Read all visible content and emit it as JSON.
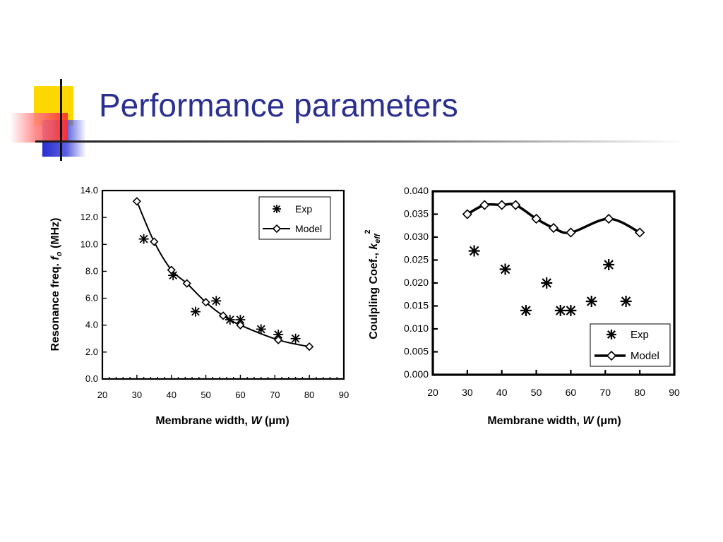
{
  "slide": {
    "title": "Performance parameters"
  },
  "colors": {
    "title": "#2b2f8f",
    "deco_yellow": "#ffd700",
    "deco_blue": "#2a2fd0",
    "deco_red": "#ff3b3b"
  },
  "chart_data": [
    {
      "type": "line",
      "title": "",
      "xlabel": "Membrane width, W (μm)",
      "ylabel": "Resonance freq. fo (MHz)",
      "xlim": [
        20,
        90
      ],
      "ylim": [
        0,
        14
      ],
      "x_ticks": [
        20,
        30,
        40,
        50,
        60,
        70,
        80,
        90
      ],
      "y_ticks": [
        0,
        2,
        4,
        6,
        8,
        10,
        12,
        14
      ],
      "x_tick_labels": [
        "20",
        "30",
        "40",
        "50",
        "60",
        "70",
        "80",
        "90"
      ],
      "y_tick_labels": [
        "0.0",
        "2.0",
        "4.0",
        "6.0",
        "8.0",
        "10.0",
        "12.0",
        "14.0"
      ],
      "legend_position": "top-right",
      "grid": false,
      "series": [
        {
          "name": "Exp",
          "marker": "asterisk",
          "points": [
            [
              32,
              10.4
            ],
            [
              40.5,
              7.7
            ],
            [
              47,
              5.0
            ],
            [
              53,
              5.8
            ],
            [
              57,
              4.4
            ],
            [
              60,
              4.4
            ],
            [
              66,
              3.7
            ],
            [
              71,
              3.3
            ],
            [
              76,
              3.0
            ]
          ]
        },
        {
          "name": "Model",
          "marker": "diamond",
          "line": true,
          "points": [
            [
              30,
              13.2
            ],
            [
              35,
              10.2
            ],
            [
              40,
              8.1
            ],
            [
              44.5,
              7.1
            ],
            [
              50,
              5.7
            ],
            [
              55,
              4.7
            ],
            [
              60,
              4.0
            ],
            [
              71,
              2.9
            ],
            [
              80,
              2.4
            ]
          ]
        }
      ]
    },
    {
      "type": "line",
      "title": "",
      "xlabel": "Membrane width, W (μm)",
      "ylabel": "Coulpling Coef., keff2",
      "xlim": [
        20,
        90
      ],
      "ylim": [
        0,
        0.04
      ],
      "x_ticks": [
        20,
        30,
        40,
        50,
        60,
        70,
        80,
        90
      ],
      "y_ticks": [
        0,
        0.005,
        0.01,
        0.015,
        0.02,
        0.025,
        0.03,
        0.035,
        0.04
      ],
      "x_tick_labels": [
        "20",
        "30",
        "40",
        "50",
        "60",
        "70",
        "80",
        "90"
      ],
      "y_tick_labels": [
        "0.000",
        "0.005",
        "0.010",
        "0.015",
        "0.020",
        "0.025",
        "0.030",
        "0.035",
        "0.040"
      ],
      "legend_position": "bottom-right",
      "grid": false,
      "series": [
        {
          "name": "Exp",
          "marker": "asterisk",
          "points": [
            [
              32,
              0.027
            ],
            [
              41,
              0.023
            ],
            [
              47,
              0.014
            ],
            [
              53,
              0.02
            ],
            [
              57,
              0.014
            ],
            [
              60,
              0.014
            ],
            [
              66,
              0.016
            ],
            [
              71,
              0.024
            ],
            [
              76,
              0.016
            ]
          ]
        },
        {
          "name": "Model",
          "marker": "diamond",
          "line": true,
          "points": [
            [
              30,
              0.035
            ],
            [
              35,
              0.037
            ],
            [
              40,
              0.037
            ],
            [
              44,
              0.037
            ],
            [
              50,
              0.034
            ],
            [
              55,
              0.032
            ],
            [
              60,
              0.031
            ],
            [
              71,
              0.034
            ],
            [
              80,
              0.031
            ]
          ]
        }
      ]
    }
  ]
}
